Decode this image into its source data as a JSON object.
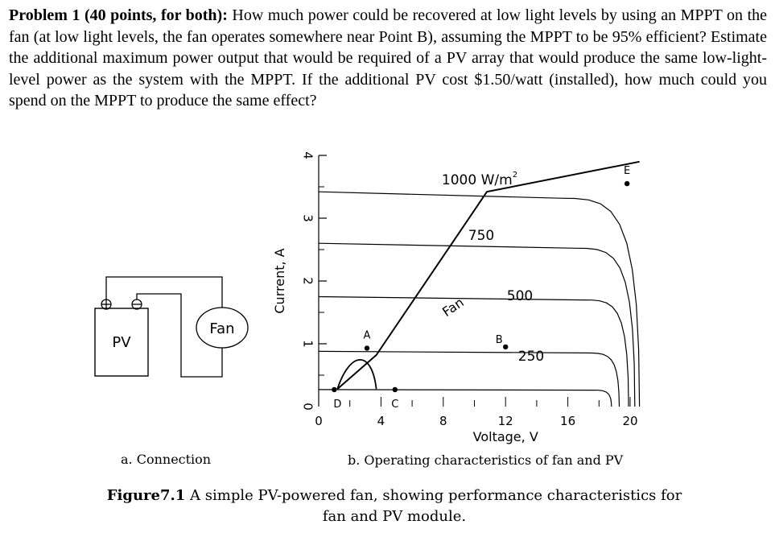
{
  "problem": {
    "label": "Problem 1 (40 points, for both):",
    "text": "How much power could be recovered at low light levels by using an MPPT on the fan (at low light levels, the fan operates somewhere near Point B), assuming the MPPT to be 95% efficient? Estimate the additional maximum power output that would be required of a PV array that would produce the same low-light-level power as the system with the MPPT. If the additional PV cost $1.50/watt (installed), how much could you spend on the MPPT to produce the same effect?"
  },
  "connection": {
    "pv_label": "PV",
    "fan_label": "Fan",
    "caption": "a. Connection"
  },
  "chart_data": {
    "type": "line",
    "ylabel": "Current, A",
    "xlabel": "Voltage, V",
    "xlim": [
      0,
      21
    ],
    "ylim": [
      0,
      4
    ],
    "x_ticks": [
      0,
      4,
      8,
      12,
      16,
      20
    ],
    "y_ticks": [
      0,
      1,
      2,
      3,
      4
    ],
    "irradiance_curves": [
      {
        "label": "1000 W/m²",
        "isc": 3.42,
        "knee": 15.5,
        "voc": 20.6
      },
      {
        "label": "750",
        "isc": 2.6,
        "knee": 16.5,
        "voc": 20.3
      },
      {
        "label": "500",
        "isc": 1.75,
        "knee": 17.0,
        "voc": 19.9
      },
      {
        "label": "250",
        "isc": 0.88,
        "knee": 17.2,
        "voc": 19.3
      },
      {
        "label": "",
        "isc": 0.27,
        "knee": 17.5,
        "voc": 18.8
      }
    ],
    "fan_curve": {
      "label": "Fan",
      "points": [
        [
          1.2,
          0.28
        ],
        [
          3.7,
          0.82
        ],
        [
          10.8,
          3.42
        ],
        [
          20.6,
          3.9
        ]
      ]
    },
    "fan_startup_curve": [
      [
        1.2,
        0.28
      ],
      [
        2.0,
        0.88
      ],
      [
        3.4,
        0.92
      ],
      [
        3.7,
        0.28
      ]
    ],
    "operating_points": [
      {
        "label": "A",
        "x": 3.1,
        "y": 0.93
      },
      {
        "label": "B",
        "x": 12.0,
        "y": 0.95
      },
      {
        "label": "C",
        "x": 4.9,
        "y": 0.27
      },
      {
        "label": "D",
        "x": 1.0,
        "y": 0.27
      },
      {
        "label": "E",
        "x": 19.8,
        "y": 3.55
      }
    ],
    "caption": "b. Operating characteristics of fan and PV"
  },
  "figure_caption": {
    "label": "Figure7.1",
    "text": "A simple PV-powered fan, showing performance characteristics for fan and PV module."
  }
}
